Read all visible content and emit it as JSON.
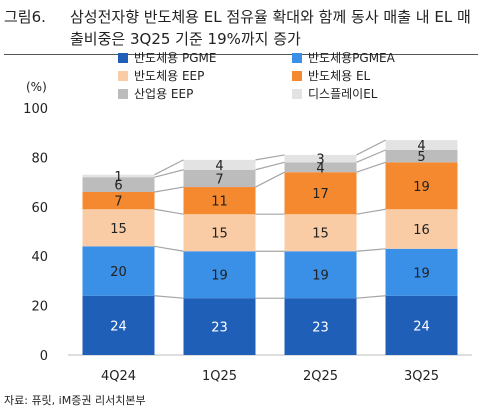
{
  "figure": {
    "label": "그림6.",
    "title": "삼성전자향 반도체용 EL 점유율 확대와 함께 동사 매출 내 EL 매출비중은 3Q25 기준 19%까지 증가",
    "source": "자료: 퓨릿, iM증권 리서치본부"
  },
  "chart_data": {
    "type": "bar",
    "stacked": true,
    "ylabel": "(%)",
    "ylim": [
      0,
      100
    ],
    "yticks": [
      0,
      20,
      40,
      60,
      80,
      100
    ],
    "categories": [
      "4Q24",
      "1Q25",
      "2Q25",
      "3Q25"
    ],
    "legend_position": "top",
    "series": [
      {
        "name": "반도체용 PGME",
        "values": [
          24,
          23,
          23,
          24
        ],
        "color": "#1f5fb8",
        "label_color": "#ffffff"
      },
      {
        "name": "반도체용PGMEA",
        "values": [
          20,
          19,
          19,
          19
        ],
        "color": "#3a8fe6",
        "label_color": "#222222"
      },
      {
        "name": "반도체용 EEP",
        "values": [
          15,
          15,
          15,
          16
        ],
        "color": "#f9cca5",
        "label_color": "#222222"
      },
      {
        "name": "반도체용 EL",
        "values": [
          7,
          11,
          17,
          19
        ],
        "color": "#f4892f",
        "label_color": "#222222"
      },
      {
        "name": "산업용 EEP",
        "values": [
          6,
          7,
          4,
          5
        ],
        "color": "#bcbcbc",
        "label_color": "#222222"
      },
      {
        "name": "디스플레이EL",
        "values": [
          1,
          4,
          3,
          4
        ],
        "color": "#e3e3e3",
        "label_color": "#222222"
      }
    ]
  }
}
